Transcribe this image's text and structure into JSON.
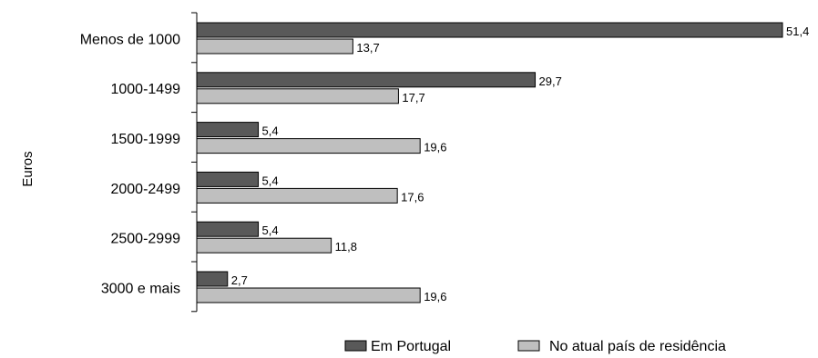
{
  "chart_data": {
    "type": "bar",
    "orientation": "horizontal",
    "categories": [
      "Menos de 1000",
      "1000-1499",
      "1500-1999",
      "2000-2499",
      "2500-2999",
      "3000 e mais"
    ],
    "series": [
      {
        "name": "Em Portugal",
        "color": "#595959",
        "values": [
          51.4,
          29.7,
          5.4,
          5.4,
          5.4,
          2.7
        ],
        "labels": [
          "51,4",
          "29,7",
          "5,4",
          "5,4",
          "5,4",
          "2,7"
        ]
      },
      {
        "name": "No atual país de residência",
        "color": "#bfbfbf",
        "values": [
          13.7,
          17.7,
          19.6,
          17.6,
          11.8,
          19.6
        ],
        "labels": [
          "13,7",
          "17,7",
          "19,6",
          "17,6",
          "11,8",
          "19,6"
        ]
      }
    ],
    "ylabel": "Euros",
    "xlim": [
      0,
      51.4
    ],
    "grid": false,
    "legend": "bottom"
  }
}
